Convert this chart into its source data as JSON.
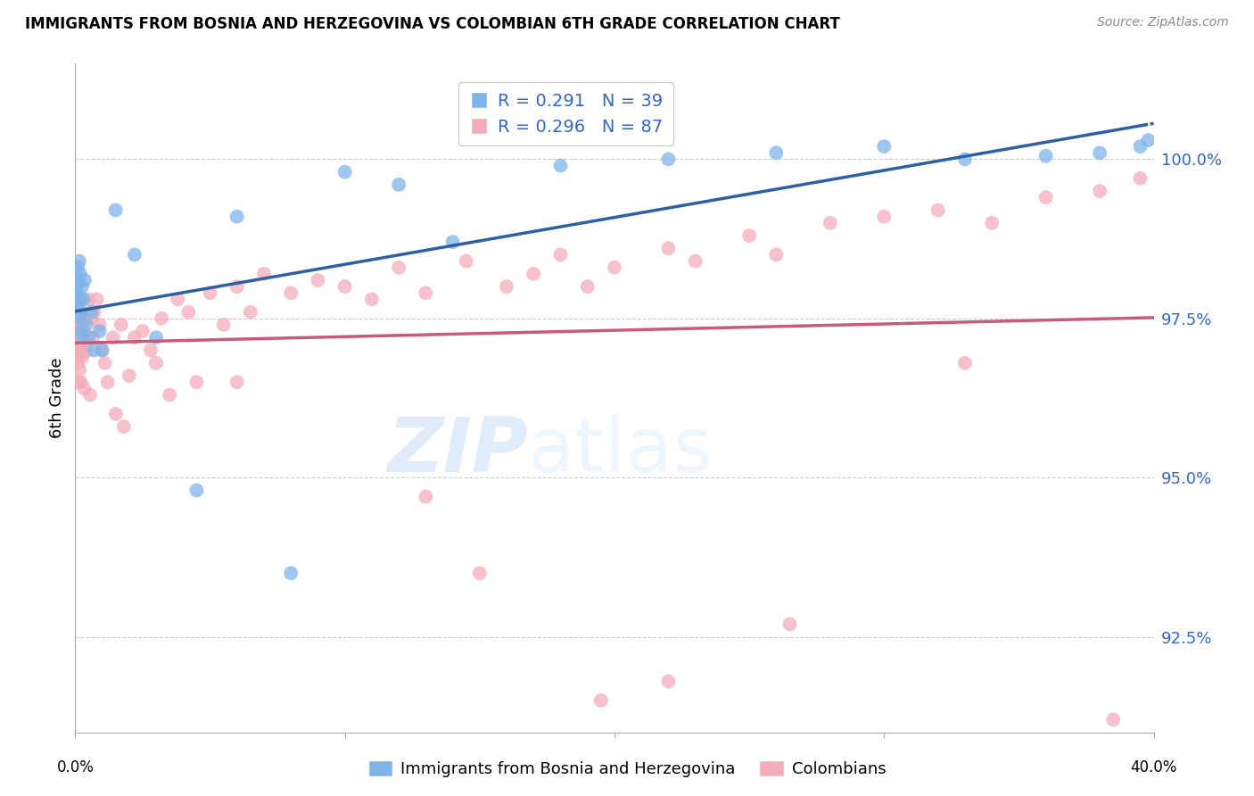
{
  "title": "IMMIGRANTS FROM BOSNIA AND HERZEGOVINA VS COLOMBIAN 6TH GRADE CORRELATION CHART",
  "source": "Source: ZipAtlas.com",
  "ylabel": "6th Grade",
  "xlim": [
    0.0,
    40.0
  ],
  "ylim": [
    91.0,
    101.5
  ],
  "legend_blue_label": "R = 0.291   N = 39",
  "legend_pink_label": "R = 0.296   N = 87",
  "legend_label_blue": "Immigrants from Bosnia and Herzegovina",
  "legend_label_pink": "Colombians",
  "blue_color": "#7EB4EA",
  "pink_color": "#F4ACBA",
  "blue_line_color": "#2E5FA3",
  "pink_line_color": "#C85A7C",
  "watermark_zip": "ZIP",
  "watermark_atlas": "atlas",
  "ytick_vals": [
    92.5,
    95.0,
    97.5,
    100.0
  ],
  "ytick_labels": [
    "92.5%",
    "95.0%",
    "97.5%",
    "100.0%"
  ],
  "blue_x": [
    0.05,
    0.07,
    0.08,
    0.1,
    0.12,
    0.13,
    0.15,
    0.17,
    0.18,
    0.2,
    0.22,
    0.25,
    0.27,
    0.3,
    0.35,
    0.4,
    0.5,
    0.6,
    0.7,
    0.9,
    1.0,
    1.5,
    2.2,
    3.0,
    4.5,
    6.0,
    8.0,
    10.0,
    12.0,
    14.0,
    18.0,
    22.0,
    26.0,
    30.0,
    33.0,
    36.0,
    38.0,
    39.5,
    39.8
  ],
  "blue_y": [
    97.9,
    98.0,
    97.7,
    98.3,
    98.1,
    97.5,
    98.4,
    97.8,
    98.2,
    97.6,
    97.3,
    98.0,
    97.2,
    97.8,
    98.1,
    97.4,
    97.2,
    97.6,
    97.0,
    97.3,
    97.0,
    99.2,
    98.5,
    97.2,
    94.8,
    99.1,
    93.5,
    99.8,
    99.6,
    98.7,
    99.9,
    100.0,
    100.1,
    100.2,
    100.0,
    100.05,
    100.1,
    100.2,
    100.3
  ],
  "pink_x": [
    0.03,
    0.05,
    0.06,
    0.07,
    0.08,
    0.09,
    0.1,
    0.11,
    0.12,
    0.13,
    0.14,
    0.15,
    0.16,
    0.17,
    0.18,
    0.19,
    0.2,
    0.21,
    0.22,
    0.23,
    0.25,
    0.27,
    0.3,
    0.33,
    0.35,
    0.4,
    0.45,
    0.5,
    0.55,
    0.6,
    0.65,
    0.7,
    0.8,
    0.9,
    1.0,
    1.1,
    1.2,
    1.4,
    1.5,
    1.7,
    1.8,
    2.0,
    2.2,
    2.5,
    2.8,
    3.0,
    3.2,
    3.5,
    3.8,
    4.2,
    4.5,
    5.0,
    5.5,
    6.0,
    6.5,
    7.0,
    8.0,
    9.0,
    10.0,
    11.0,
    12.0,
    13.0,
    14.5,
    16.0,
    17.0,
    18.0,
    19.0,
    20.0,
    22.0,
    23.0,
    25.0,
    26.0,
    28.0,
    30.0,
    32.0,
    34.0,
    36.0,
    38.0,
    39.5,
    6.0,
    13.0,
    19.5,
    26.5,
    33.0,
    38.5,
    15.0,
    22.0
  ],
  "pink_y": [
    97.5,
    97.7,
    97.2,
    97.4,
    97.0,
    96.8,
    97.6,
    97.1,
    96.5,
    96.9,
    97.3,
    97.0,
    96.7,
    97.5,
    97.2,
    97.8,
    97.0,
    96.5,
    97.4,
    97.6,
    97.1,
    96.9,
    97.3,
    96.4,
    97.5,
    97.2,
    97.0,
    97.8,
    96.3,
    97.5,
    97.2,
    97.6,
    97.8,
    97.4,
    97.0,
    96.8,
    96.5,
    97.2,
    96.0,
    97.4,
    95.8,
    96.6,
    97.2,
    97.3,
    97.0,
    96.8,
    97.5,
    96.3,
    97.8,
    97.6,
    96.5,
    97.9,
    97.4,
    98.0,
    97.6,
    98.2,
    97.9,
    98.1,
    98.0,
    97.8,
    98.3,
    97.9,
    98.4,
    98.0,
    98.2,
    98.5,
    98.0,
    98.3,
    98.6,
    98.4,
    98.8,
    98.5,
    99.0,
    99.1,
    99.2,
    99.0,
    99.4,
    99.5,
    99.7,
    96.5,
    94.7,
    91.5,
    92.7,
    96.8,
    91.2,
    93.5,
    91.8
  ]
}
